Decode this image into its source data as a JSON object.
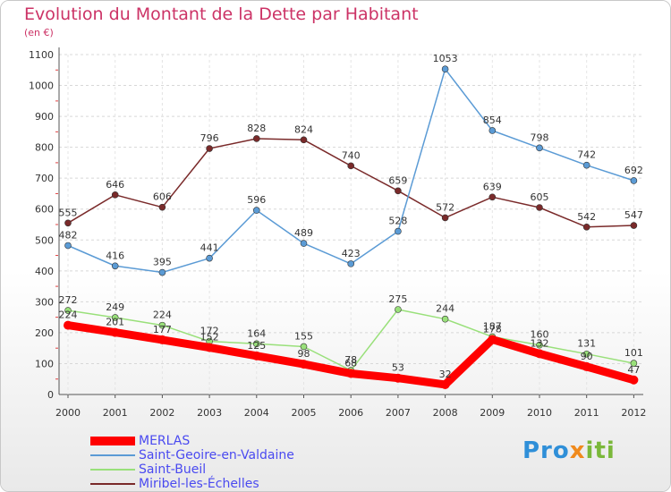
{
  "page": {
    "title": "Evolution du Montant de la Dette par Habitant",
    "unit": "(en €)"
  },
  "chart_data": {
    "type": "line",
    "title": "Evolution du Montant de la Dette par Habitant",
    "subtitle": "(en €)",
    "x": [
      "2000",
      "2001",
      "2002",
      "2003",
      "2004",
      "2005",
      "2006",
      "2007",
      "2008",
      "2009",
      "2010",
      "2011",
      "2012"
    ],
    "ylim": [
      0,
      1100
    ],
    "yticks": [
      0,
      100,
      200,
      300,
      400,
      500,
      600,
      700,
      800,
      900,
      1000,
      1100
    ],
    "grid": true,
    "legend_position": "bottom-left",
    "series": [
      {
        "name": "MERLAS",
        "color": "#ff0000",
        "values": [
          224,
          201,
          177,
          152,
          125,
          98,
          68,
          53,
          32,
          178,
          132,
          90,
          47
        ]
      },
      {
        "name": "Saint-Geoire-en-Valdaine",
        "color": "#5b9bd5",
        "values": [
          482,
          416,
          395,
          441,
          596,
          489,
          423,
          528,
          1053,
          854,
          798,
          742,
          692
        ]
      },
      {
        "name": "Saint-Bueil",
        "color": "#99e07a",
        "values": [
          272,
          249,
          224,
          172,
          164,
          155,
          78,
          275,
          244,
          187,
          160,
          131,
          101
        ]
      },
      {
        "name": "Miribel-les-Échelles",
        "color": "#7a2a2a",
        "values": [
          555,
          646,
          606,
          796,
          828,
          824,
          740,
          659,
          572,
          639,
          605,
          542,
          547
        ]
      }
    ]
  },
  "logo": {
    "part1": "Pro",
    "part2": "x",
    "part3": "iti"
  }
}
